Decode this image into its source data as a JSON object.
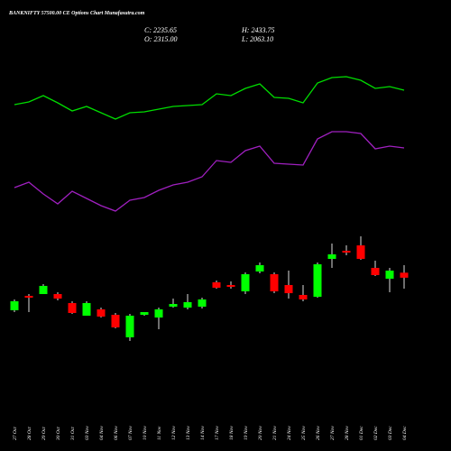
{
  "chart_data": {
    "type": "candlestick",
    "title": "BANKNIFTY 57500.00  CE Options  Chart Munafasutra.com",
    "ohlc_summary": {
      "close": "C: 2235.65",
      "high": "H: 2433.75",
      "open": "O: 2315.00",
      "low": "L: 2063.10"
    },
    "categories": [
      "27 Oct",
      "28 Oct",
      "29 Oct",
      "30 Oct",
      "31 Oct",
      "03 Nov",
      "04 Nov",
      "06 Nov",
      "07 Nov",
      "10 Nov",
      "11 Nov",
      "12 Nov",
      "13 Nov",
      "14 Nov",
      "17 Nov",
      "18 Nov",
      "19 Nov",
      "20 Nov",
      "21 Nov",
      "24 Nov",
      "25 Nov",
      "26 Nov",
      "27 Nov",
      "28 Nov",
      "01 Dec",
      "02 Dec",
      "03 Dec",
      "04 Dec"
    ],
    "open": [
      1721,
      1949,
      1977,
      1977,
      1835,
      1635,
      1735,
      1649,
      1293,
      1649,
      1606,
      1778,
      1763,
      1778,
      2163,
      2120,
      2020,
      2334,
      2291,
      2120,
      1963,
      1934,
      2533,
      2662,
      2747,
      2391,
      2220,
      2315
    ],
    "high": [
      1892,
      1977,
      2134,
      2006,
      1863,
      1863,
      1763,
      1678,
      1664,
      1692,
      1763,
      1906,
      1977,
      1920,
      2191,
      2177,
      2319,
      2476,
      2319,
      2348,
      2120,
      2476,
      2776,
      2747,
      2890,
      2505,
      2391,
      2433.75
    ],
    "low": [
      1692,
      1692,
      1977,
      1877,
      1664,
      1635,
      1606,
      1435,
      1236,
      1635,
      1421,
      1763,
      1735,
      1749,
      2063,
      2063,
      1977,
      2305,
      1991,
      1906,
      1863,
      1920,
      2391,
      2590,
      2519,
      2262,
      2006,
      2063.1
    ],
    "close": [
      1863,
      1920,
      2106,
      1906,
      1678,
      1835,
      1621,
      1450,
      1635,
      1692,
      1735,
      1820,
      1849,
      1892,
      2077,
      2091,
      2291,
      2434,
      2020,
      1991,
      1892,
      2448,
      2605,
      2633,
      2533,
      2277,
      2348,
      2235.65
    ],
    "up_color": "#00ff00",
    "down_color": "#ff0000",
    "ylim": [
      1000,
      3000
    ],
    "indicator_ylim": [
      0,
      500
    ],
    "indicators": [
      {
        "color": "#00dd00",
        "values": [
          384,
          387,
          394,
          386,
          377,
          382,
          375,
          368,
          375,
          376,
          379,
          382,
          383,
          384,
          396,
          394,
          402,
          407,
          392,
          391,
          386,
          408,
          414,
          415,
          411,
          402,
          404,
          400
        ]
      },
      {
        "color": "#a020c0",
        "values": [
          292,
          298,
          285,
          274,
          288,
          280,
          272,
          266,
          278,
          281,
          289,
          295,
          298,
          304,
          322,
          320,
          333,
          338,
          319,
          318,
          317,
          346,
          354,
          354,
          352,
          335,
          338,
          336
        ]
      }
    ]
  }
}
